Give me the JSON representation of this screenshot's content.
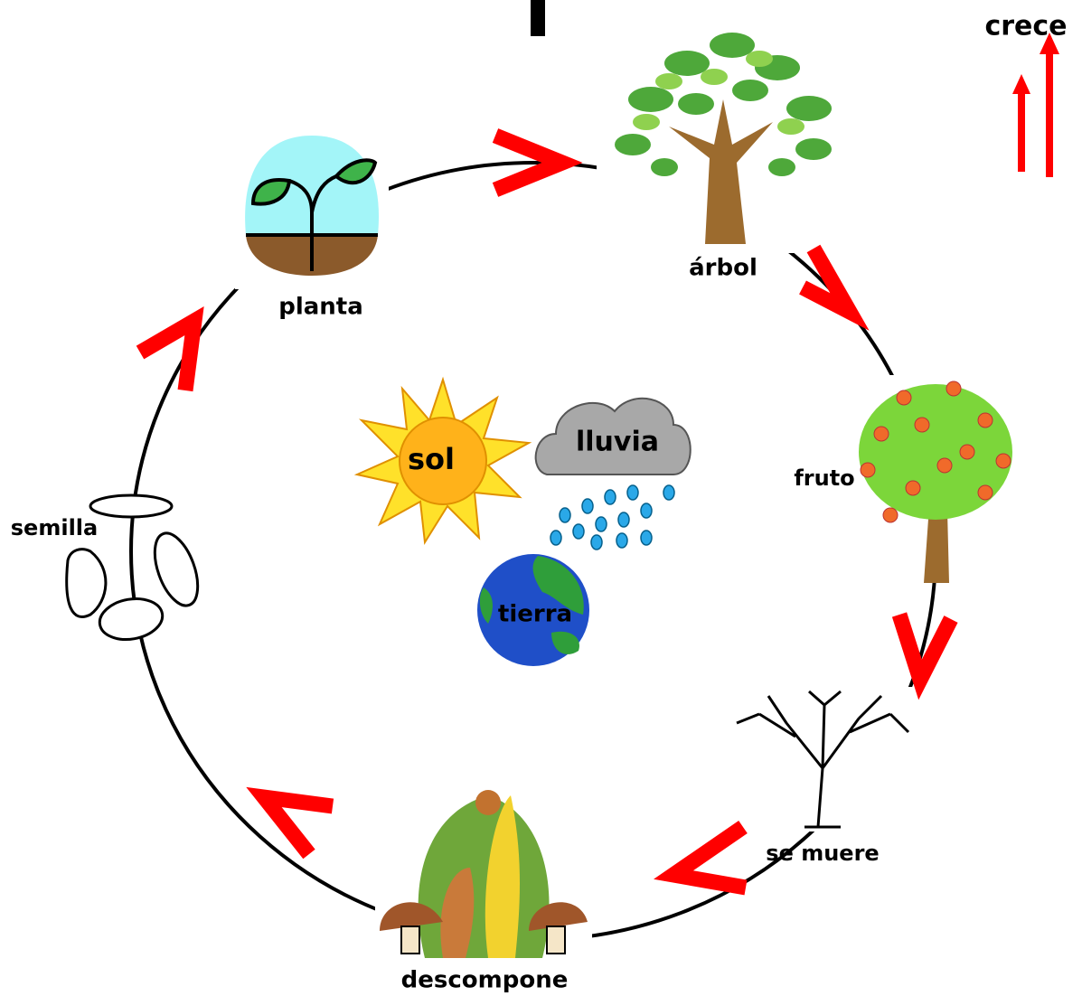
{
  "growth_label": "crece",
  "nodes": [
    {
      "label": "árbol"
    },
    {
      "label": "fruto"
    },
    {
      "label": "se muere"
    },
    {
      "label": "descompone"
    },
    {
      "label": "semilla"
    },
    {
      "label": "planta"
    }
  ],
  "needs": [
    {
      "label": "sol"
    },
    {
      "label": "lluvia"
    },
    {
      "label": "tierra"
    }
  ]
}
